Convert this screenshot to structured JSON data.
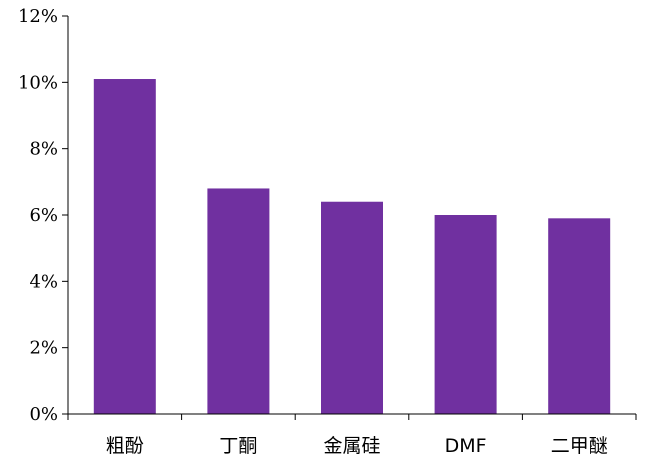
{
  "chart_data": {
    "type": "bar",
    "categories": [
      "粗酚",
      "丁酮",
      "金属硅",
      "DMF",
      "二甲醚"
    ],
    "values": [
      0.101,
      0.068,
      0.064,
      0.06,
      0.059
    ],
    "ylim": [
      0,
      0.12
    ],
    "yticks": [
      0,
      0.02,
      0.04,
      0.06,
      0.08,
      0.1,
      0.12
    ],
    "ytick_labels": [
      "0%",
      "2%",
      "4%",
      "6%",
      "8%",
      "10%",
      "12%"
    ],
    "bar_color": "#7030A0",
    "grid": false,
    "legend": "none"
  }
}
